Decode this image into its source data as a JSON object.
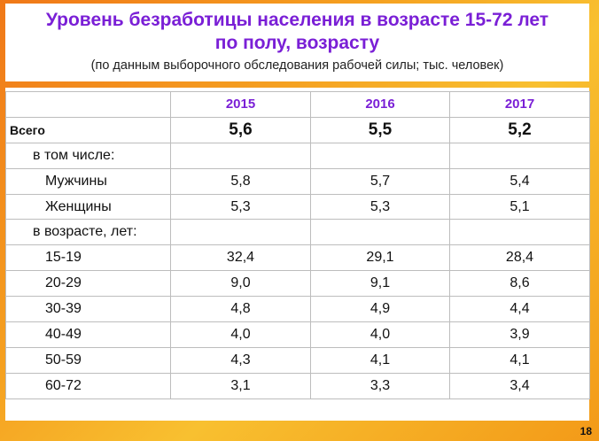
{
  "header": {
    "title_line1": "Уровень безработицы населения в возрасте 15-72 лет",
    "title_line2": "по полу, возрасту",
    "subtitle": "(по данным выборочного обследования рабочей силы; тыс. человек)"
  },
  "table": {
    "years": [
      "2015",
      "2016",
      "2017"
    ],
    "total": {
      "label": "Всего",
      "values": [
        "5,6",
        "5,5",
        "5,2"
      ]
    },
    "section_gender": "в том числе:",
    "men": {
      "label": "Мужчины",
      "values": [
        "5,8",
        "5,7",
        "5,4"
      ]
    },
    "women": {
      "label": "Женщины",
      "values": [
        "5,3",
        "5,3",
        "5,1"
      ]
    },
    "section_age": "в возрасте, лет:",
    "ages": [
      {
        "label": "15-19",
        "values": [
          "32,4",
          "29,1",
          "28,4"
        ]
      },
      {
        "label": "20-29",
        "values": [
          "9,0",
          "9,1",
          "8,6"
        ]
      },
      {
        "label": "30-39",
        "values": [
          "4,8",
          "4,9",
          "4,4"
        ]
      },
      {
        "label": "40-49",
        "values": [
          "4,0",
          "4,0",
          "3,9"
        ]
      },
      {
        "label": "50-59",
        "values": [
          "4,3",
          "4,1",
          "4,1"
        ]
      },
      {
        "label": "60-72",
        "values": [
          "3,1",
          "3,3",
          "3,4"
        ]
      }
    ]
  },
  "page_number": "18",
  "colors": {
    "title": "#7a1fd6",
    "background": "#f5a020",
    "grid": "#bdbdbd"
  }
}
